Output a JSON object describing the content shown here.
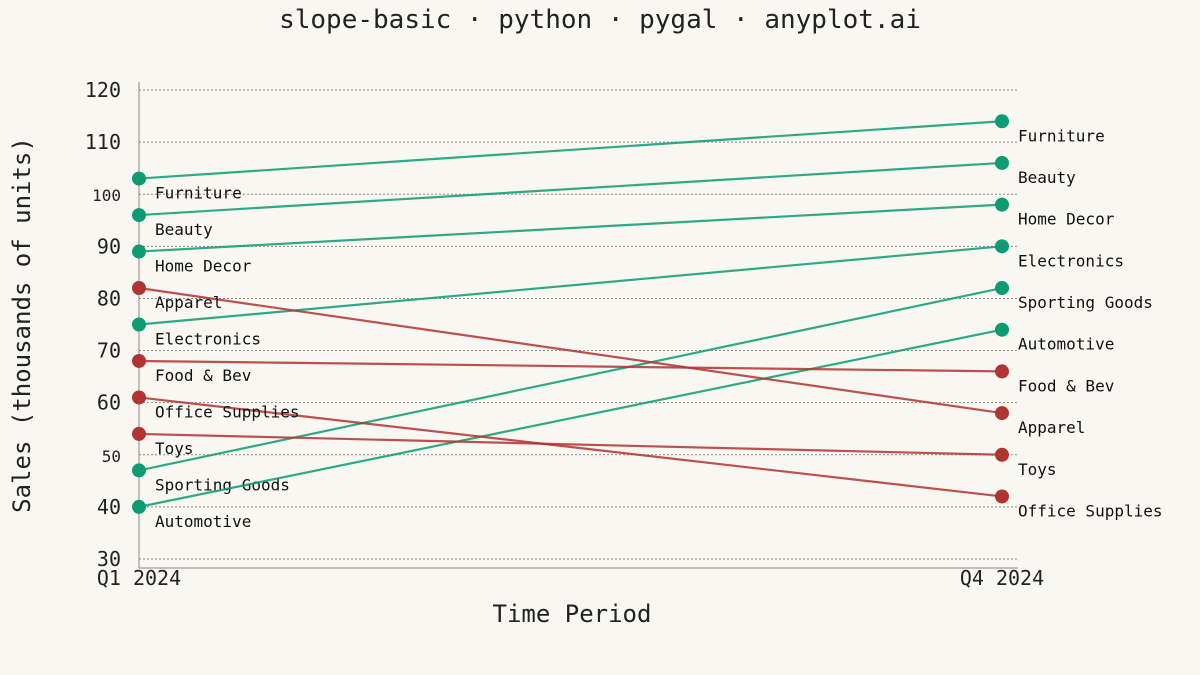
{
  "chart_data": {
    "type": "line",
    "title": "slope-basic · python · pygal · anyplot.ai",
    "xlabel": "Time Period",
    "ylabel": "Sales (thousands of units)",
    "categories": [
      "Q1 2024",
      "Q4 2024"
    ],
    "ylim": [
      30,
      120
    ],
    "yticks": [
      30,
      40,
      50,
      60,
      70,
      80,
      90,
      100,
      110,
      120
    ],
    "grid": true,
    "legend": "none",
    "colors": {
      "increase": "#0e9a72",
      "decrease": "#b03432"
    },
    "series": [
      {
        "name": "Furniture",
        "values": [
          103,
          114
        ],
        "trend": "increase"
      },
      {
        "name": "Beauty",
        "values": [
          96,
          106
        ],
        "trend": "increase"
      },
      {
        "name": "Home Decor",
        "values": [
          89,
          98
        ],
        "trend": "increase"
      },
      {
        "name": "Electronics",
        "values": [
          75,
          90
        ],
        "trend": "increase"
      },
      {
        "name": "Sporting Goods",
        "values": [
          47,
          82
        ],
        "trend": "increase"
      },
      {
        "name": "Automotive",
        "values": [
          40,
          74
        ],
        "trend": "increase"
      },
      {
        "name": "Apparel",
        "values": [
          82,
          58
        ],
        "trend": "decrease"
      },
      {
        "name": "Food & Bev",
        "values": [
          68,
          66
        ],
        "trend": "decrease"
      },
      {
        "name": "Office Supplies",
        "values": [
          61,
          42
        ],
        "trend": "decrease"
      },
      {
        "name": "Toys",
        "values": [
          54,
          50
        ],
        "trend": "decrease"
      }
    ]
  }
}
